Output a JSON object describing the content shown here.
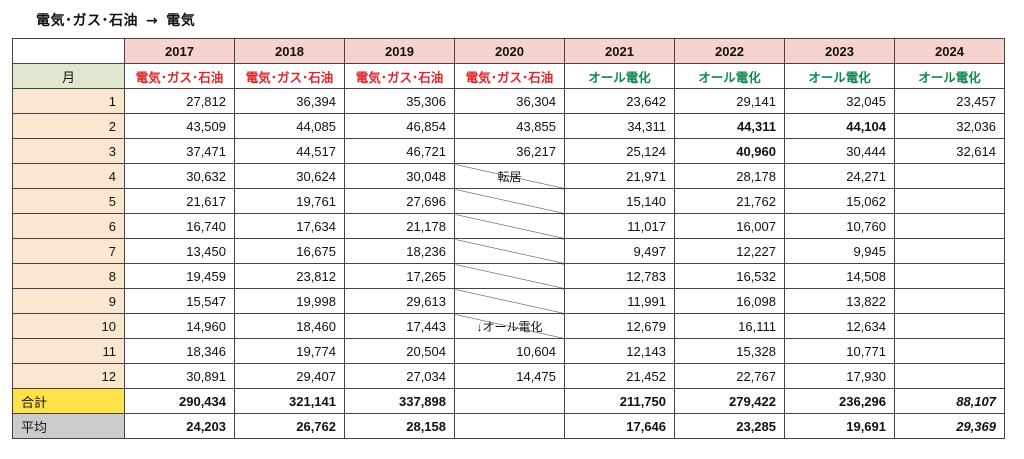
{
  "heading": {
    "from": "電気･ガス･石油",
    "arrow": "→",
    "to": "電気"
  },
  "table": {
    "month_header": "月",
    "years": [
      "2017",
      "2018",
      "2019",
      "2020",
      "2021",
      "2022",
      "2023",
      "2024"
    ],
    "types": [
      "電気･ガス･石油",
      "電気･ガス･石油",
      "電気･ガス･石油",
      "電気･ガス･石油",
      "オール電化",
      "オール電化",
      "オール電化",
      "オール電化"
    ],
    "rows": [
      {
        "month": "1",
        "values": [
          "27,812",
          "36,394",
          "35,306",
          "36,304",
          "23,642",
          "29,141",
          "32,045",
          "23,457"
        ]
      },
      {
        "month": "2",
        "values": [
          "43,509",
          "44,085",
          "46,854",
          "43,855",
          "34,311",
          "44,311",
          "44,104",
          "32,036"
        ]
      },
      {
        "month": "3",
        "values": [
          "37,471",
          "44,517",
          "46,721",
          "36,217",
          "25,124",
          "40,960",
          "30,444",
          "32,614"
        ]
      },
      {
        "month": "4",
        "values": [
          "30,632",
          "30,624",
          "30,048",
          "転居",
          "21,971",
          "28,178",
          "24,271",
          ""
        ]
      },
      {
        "month": "5",
        "values": [
          "21,617",
          "19,761",
          "27,696",
          "",
          "15,140",
          "21,762",
          "15,062",
          ""
        ]
      },
      {
        "month": "6",
        "values": [
          "16,740",
          "17,634",
          "21,178",
          "",
          "11,017",
          "16,007",
          "10,760",
          ""
        ]
      },
      {
        "month": "7",
        "values": [
          "13,450",
          "16,675",
          "18,236",
          "",
          "9,497",
          "12,227",
          "9,945",
          ""
        ]
      },
      {
        "month": "8",
        "values": [
          "19,459",
          "23,812",
          "17,265",
          "",
          "12,783",
          "16,532",
          "14,508",
          ""
        ]
      },
      {
        "month": "9",
        "values": [
          "15,547",
          "19,998",
          "29,613",
          "",
          "11,991",
          "16,098",
          "13,822",
          ""
        ]
      },
      {
        "month": "10",
        "values": [
          "14,960",
          "18,460",
          "17,443",
          "↓オール電化",
          "12,679",
          "16,111",
          "12,634",
          ""
        ]
      },
      {
        "month": "11",
        "values": [
          "18,346",
          "19,774",
          "20,504",
          "10,604",
          "12,143",
          "15,328",
          "10,771",
          ""
        ]
      },
      {
        "month": "12",
        "values": [
          "30,891",
          "29,407",
          "27,034",
          "14,475",
          "21,452",
          "22,767",
          "17,930",
          ""
        ]
      }
    ],
    "total": {
      "label": "合計",
      "values": [
        "290,434",
        "321,141",
        "337,898",
        "",
        "211,750",
        "279,422",
        "236,296",
        "88,107"
      ]
    },
    "average": {
      "label": "平均",
      "values": [
        "24,203",
        "26,762",
        "28,158",
        "",
        "17,646",
        "23,285",
        "19,691",
        "29,369"
      ]
    }
  },
  "colors": {
    "year_header_bg": "#f6d3cf",
    "month_col_bg": "#fbe6cf",
    "month_header_bg": "#dfe8cf",
    "total_label_bg": "#ffe14a",
    "average_label_bg": "#cccccc",
    "type_old_text": "#e0262b",
    "type_new_text": "#0f8a4c"
  }
}
